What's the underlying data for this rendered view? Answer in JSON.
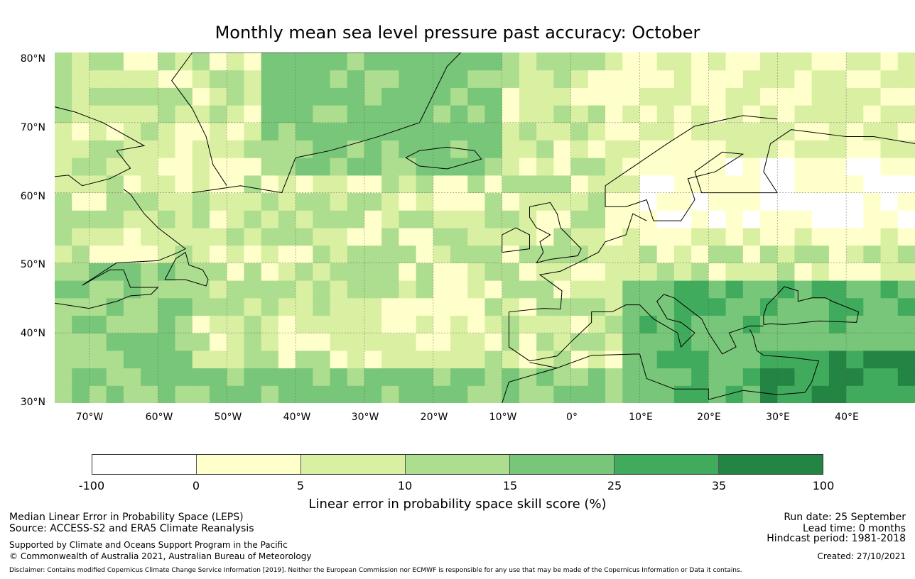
{
  "title": "Monthly mean sea level pressure past accuracy: October",
  "map": {
    "lat_range": [
      30,
      80
    ],
    "lon_range": [
      -75,
      50
    ],
    "lat_ticks": [
      "80°N",
      "70°N",
      "60°N",
      "50°N",
      "40°N",
      "30°N"
    ],
    "lon_ticks": [
      "70°W",
      "60°W",
      "50°W",
      "40°W",
      "30°W",
      "20°W",
      "10°W",
      "0°",
      "10°E",
      "20°E",
      "30°E",
      "40°E"
    ],
    "colors": {
      "cat_neg": "#ffffff",
      "cat_0_5": "#ffffcc",
      "cat_5_10": "#d9f0a3",
      "cat_10_15": "#addd8e",
      "cat_15_25": "#78c679",
      "cat_25_35": "#41ab5d",
      "cat_35_100": "#238443",
      "coastline": "#000000",
      "gridline": "#555555"
    }
  },
  "colorbar": {
    "ticks": [
      "-100",
      "0",
      "5",
      "10",
      "15",
      "25",
      "35",
      "100"
    ],
    "colors": [
      "#ffffff",
      "#ffffcc",
      "#d9f0a3",
      "#addd8e",
      "#78c679",
      "#41ab5d",
      "#238443"
    ],
    "label": "Linear error in probability space skill score (%)"
  },
  "footer": {
    "left_line1": "Median Linear Error in Probability Space (LEPS)",
    "left_line2": "Source: ACCESS-S2 and ERA5 Climate Reanalysis",
    "left_line3": "Supported by Climate and Oceans Support Program in the Pacific",
    "left_line4": "© Commonwealth of Australia 2021, Australian Bureau of Meteorology",
    "right_line1": "Run date: 25 September",
    "right_line2": "Lead time: 0 months",
    "right_line3": "Hindcast period: 1981-2018",
    "right_line4": "Created: 27/10/2021",
    "disclaimer": "Disclaimer: Contains modified Copernicus Climate Change Service Information [2019]. Neither the European Commission nor ECMWF is responsible for any use that may be made of the Copernicus Information or Data it contains."
  }
}
